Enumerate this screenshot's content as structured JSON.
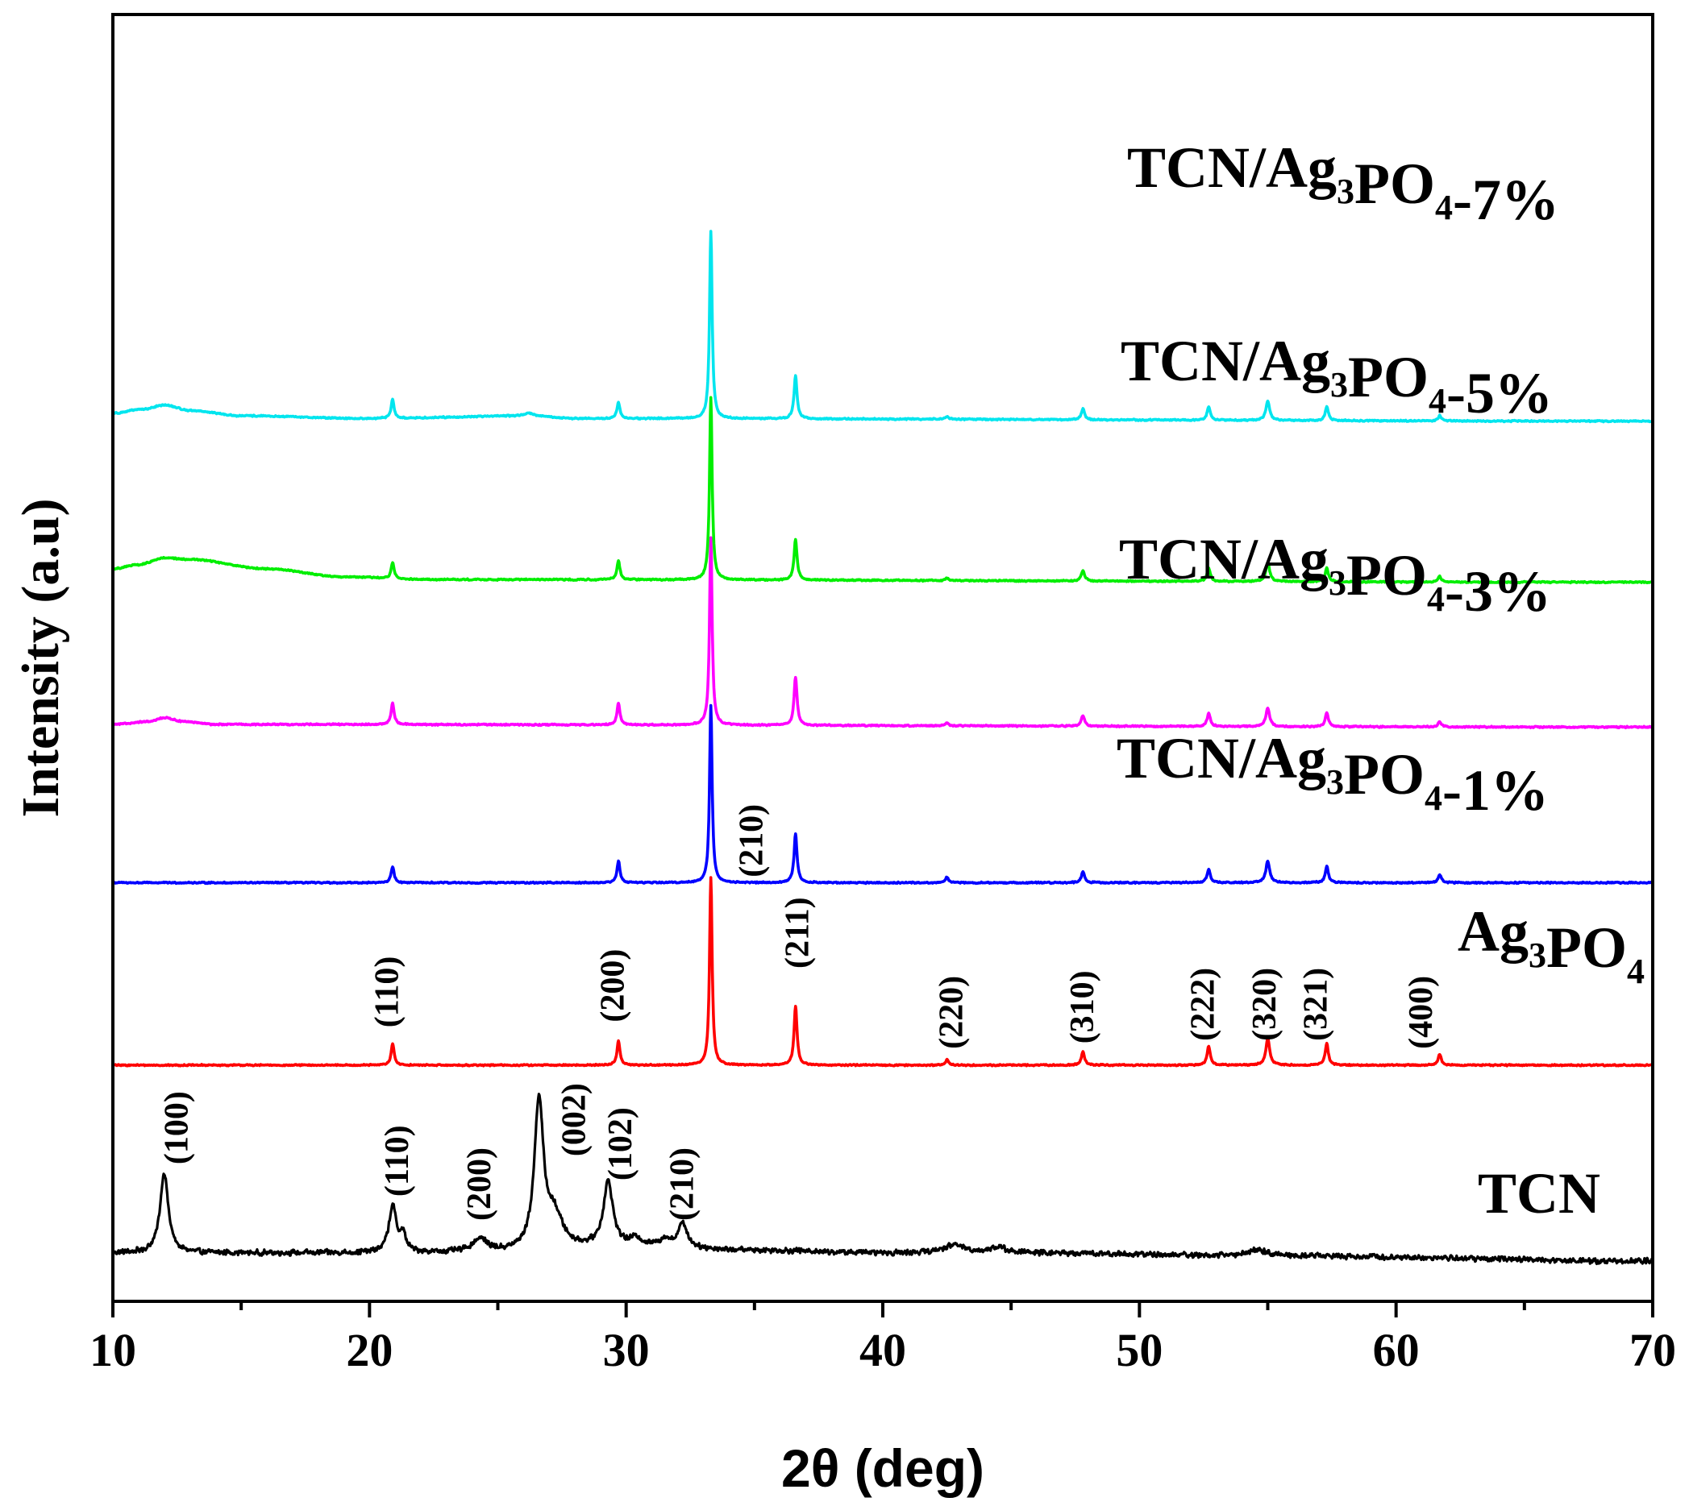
{
  "chart_data": {
    "type": "line",
    "title": "",
    "xlabel": "2θ (deg)",
    "ylabel": "Intensity (a.u)",
    "xlim": [
      10,
      70
    ],
    "xticks": [
      10,
      20,
      30,
      40,
      50,
      60,
      70
    ],
    "grid": false,
    "series": [
      {
        "name": "TCN",
        "label_main": "TCN",
        "label_sub": "",
        "label_mid": "",
        "label_sub2": "",
        "label_end": "",
        "color": "#000000",
        "baseline": 0.0,
        "end_offset": -0.03,
        "background": [
          [
            10,
            0.0
          ],
          [
            15,
            0.0
          ],
          [
            25,
            0.0
          ],
          [
            30,
            0.02
          ],
          [
            35,
            0.01
          ],
          [
            40,
            0.0
          ],
          [
            45,
            0.0
          ],
          [
            55,
            -0.01
          ],
          [
            70,
            -0.03
          ]
        ],
        "noise": 0.012,
        "peaks": [
          [
            12.0,
            0.3,
            0.38
          ],
          [
            20.9,
            0.17,
            0.35
          ],
          [
            21.3,
            0.06,
            0.3
          ],
          [
            24.3,
            0.05,
            0.7
          ],
          [
            26.6,
            0.55,
            0.42
          ],
          [
            27.2,
            0.12,
            0.8
          ],
          [
            29.3,
            0.24,
            0.45
          ],
          [
            30.4,
            0.03,
            0.5
          ],
          [
            31.5,
            0.03,
            0.5
          ],
          [
            32.2,
            0.09,
            0.45
          ],
          [
            42.8,
            0.03,
            1.0
          ],
          [
            44.5,
            0.02,
            0.8
          ],
          [
            54.6,
            0.02,
            0.9
          ]
        ],
        "annotations": [
          {
            "text": "(100)",
            "x": 12.9,
            "y": 0.33
          },
          {
            "text": "(110)",
            "x": 21.5,
            "y": 0.21
          },
          {
            "text": "(200)",
            "x": 24.7,
            "y": 0.12
          },
          {
            "text": "(002)",
            "x": 28.4,
            "y": 0.36
          },
          {
            "text": "(102)",
            "x": 30.2,
            "y": 0.27
          },
          {
            "text": "(210)",
            "x": 32.6,
            "y": 0.12
          }
        ]
      },
      {
        "name": "Ag3PO4",
        "label_main": "Ag",
        "label_sub": "3",
        "label_mid": "PO",
        "label_sub2": "4",
        "label_end": "",
        "color": "#ff0000",
        "baseline": 0.7,
        "end_offset": 0.0,
        "background": [
          [
            10,
            0.0
          ],
          [
            70,
            0.0
          ]
        ],
        "noise": 0.003,
        "peaks": [
          [
            20.9,
            0.08,
            0.14
          ],
          [
            29.7,
            0.09,
            0.14
          ],
          [
            33.3,
            0.7,
            0.12
          ],
          [
            36.6,
            0.22,
            0.14
          ],
          [
            42.5,
            0.02,
            0.15
          ],
          [
            47.8,
            0.05,
            0.15
          ],
          [
            52.7,
            0.07,
            0.15
          ],
          [
            55.0,
            0.1,
            0.18
          ],
          [
            57.3,
            0.08,
            0.15
          ],
          [
            61.7,
            0.04,
            0.15
          ]
        ],
        "annotations": [
          {
            "text": "(110)",
            "x": 21.1,
            "y": 0.14
          },
          {
            "text": "(200)",
            "x": 29.9,
            "y": 0.16
          },
          {
            "text": "(210)",
            "x": 35.3,
            "y": 0.7
          },
          {
            "text": "(211)",
            "x": 37.1,
            "y": 0.36
          },
          {
            "text": "(220)",
            "x": 43.1,
            "y": 0.06
          },
          {
            "text": "(310)",
            "x": 48.2,
            "y": 0.08
          },
          {
            "text": "(222)",
            "x": 52.9,
            "y": 0.09
          },
          {
            "text": "(320)",
            "x": 55.3,
            "y": 0.09
          },
          {
            "text": "(321)",
            "x": 57.3,
            "y": 0.09
          },
          {
            "text": "(400)",
            "x": 61.4,
            "y": 0.06
          }
        ]
      },
      {
        "name": "TCN/Ag3PO4-1%",
        "label_main": "TCN/Ag",
        "label_sub": "3",
        "label_mid": "PO",
        "label_sub2": "4",
        "label_end": "-1%",
        "color": "#0000ff",
        "baseline": 1.38,
        "end_offset": 0.0,
        "background": [
          [
            10,
            0.0
          ],
          [
            70,
            0.0
          ]
        ],
        "noise": 0.003,
        "peaks": [
          [
            20.9,
            0.06,
            0.14
          ],
          [
            29.7,
            0.08,
            0.14
          ],
          [
            33.3,
            0.66,
            0.12
          ],
          [
            36.6,
            0.18,
            0.14
          ],
          [
            42.5,
            0.02,
            0.15
          ],
          [
            47.8,
            0.04,
            0.15
          ],
          [
            52.7,
            0.05,
            0.15
          ],
          [
            55.0,
            0.08,
            0.18
          ],
          [
            57.3,
            0.06,
            0.15
          ],
          [
            61.7,
            0.03,
            0.15
          ]
        ],
        "annotations": []
      },
      {
        "name": "TCN/Ag3PO4-3%",
        "label_main": "TCN/Ag",
        "label_sub": "3",
        "label_mid": "PO",
        "label_sub2": "4",
        "label_end": "-3%",
        "color": "#ff00ff",
        "baseline": 1.97,
        "end_offset": -0.01,
        "background": [
          [
            10,
            0.0
          ],
          [
            11.4,
            0.01
          ],
          [
            12.0,
            0.025
          ],
          [
            12.8,
            0.01
          ],
          [
            14,
            0.0
          ],
          [
            70,
            -0.01
          ]
        ],
        "noise": 0.003,
        "peaks": [
          [
            20.9,
            0.08,
            0.14
          ],
          [
            29.7,
            0.08,
            0.14
          ],
          [
            33.3,
            0.7,
            0.12
          ],
          [
            36.6,
            0.18,
            0.14
          ],
          [
            42.5,
            0.01,
            0.15
          ],
          [
            47.8,
            0.04,
            0.15
          ],
          [
            52.7,
            0.05,
            0.15
          ],
          [
            55.0,
            0.07,
            0.18
          ],
          [
            57.3,
            0.05,
            0.15
          ],
          [
            61.7,
            0.02,
            0.15
          ]
        ],
        "annotations": []
      },
      {
        "name": "TCN/Ag3PO4-5%",
        "label_main": "TCN/Ag",
        "label_sub": "3",
        "label_mid": "PO",
        "label_sub2": "4",
        "label_end": "-5%",
        "color": "#00ee00",
        "baseline": 2.55,
        "end_offset": 0.0,
        "background": [
          [
            10,
            0.0
          ],
          [
            11.0,
            0.015
          ],
          [
            12.0,
            0.04
          ],
          [
            13.0,
            0.035
          ],
          [
            16,
            0.0
          ],
          [
            19,
            -0.03
          ],
          [
            22,
            -0.04
          ],
          [
            70,
            -0.05
          ]
        ],
        "noise": 0.003,
        "peaks": [
          [
            20.9,
            0.06,
            0.14
          ],
          [
            29.7,
            0.07,
            0.14
          ],
          [
            33.3,
            0.68,
            0.12
          ],
          [
            36.6,
            0.15,
            0.14
          ],
          [
            42.5,
            0.01,
            0.15
          ],
          [
            47.8,
            0.04,
            0.15
          ],
          [
            52.7,
            0.05,
            0.15
          ],
          [
            55.0,
            0.07,
            0.18
          ],
          [
            57.3,
            0.05,
            0.15
          ],
          [
            61.7,
            0.02,
            0.15
          ]
        ],
        "annotations": []
      },
      {
        "name": "TCN/Ag3PO4-7%",
        "label_main": "TCN/Ag",
        "label_sub": "3",
        "label_mid": "PO",
        "label_sub2": "4",
        "label_end": "-7%",
        "color": "#00e5ee",
        "baseline": 3.13,
        "end_offset": 0.0,
        "background": [
          [
            10,
            0.0
          ],
          [
            11.2,
            0.015
          ],
          [
            12.0,
            0.03
          ],
          [
            13.0,
            0.01
          ],
          [
            15,
            -0.01
          ],
          [
            20,
            -0.02
          ],
          [
            26.2,
            -0.01
          ],
          [
            28,
            -0.02
          ],
          [
            70,
            -0.03
          ]
        ],
        "noise": 0.003,
        "peaks": [
          [
            20.9,
            0.07,
            0.14
          ],
          [
            26.2,
            0.01,
            0.4
          ],
          [
            29.7,
            0.06,
            0.14
          ],
          [
            33.3,
            0.7,
            0.12
          ],
          [
            36.6,
            0.16,
            0.14
          ],
          [
            42.5,
            0.01,
            0.15
          ],
          [
            47.8,
            0.04,
            0.15
          ],
          [
            52.7,
            0.05,
            0.15
          ],
          [
            55.0,
            0.07,
            0.18
          ],
          [
            57.3,
            0.05,
            0.15
          ],
          [
            61.7,
            0.02,
            0.15
          ]
        ],
        "annotations": []
      }
    ]
  }
}
